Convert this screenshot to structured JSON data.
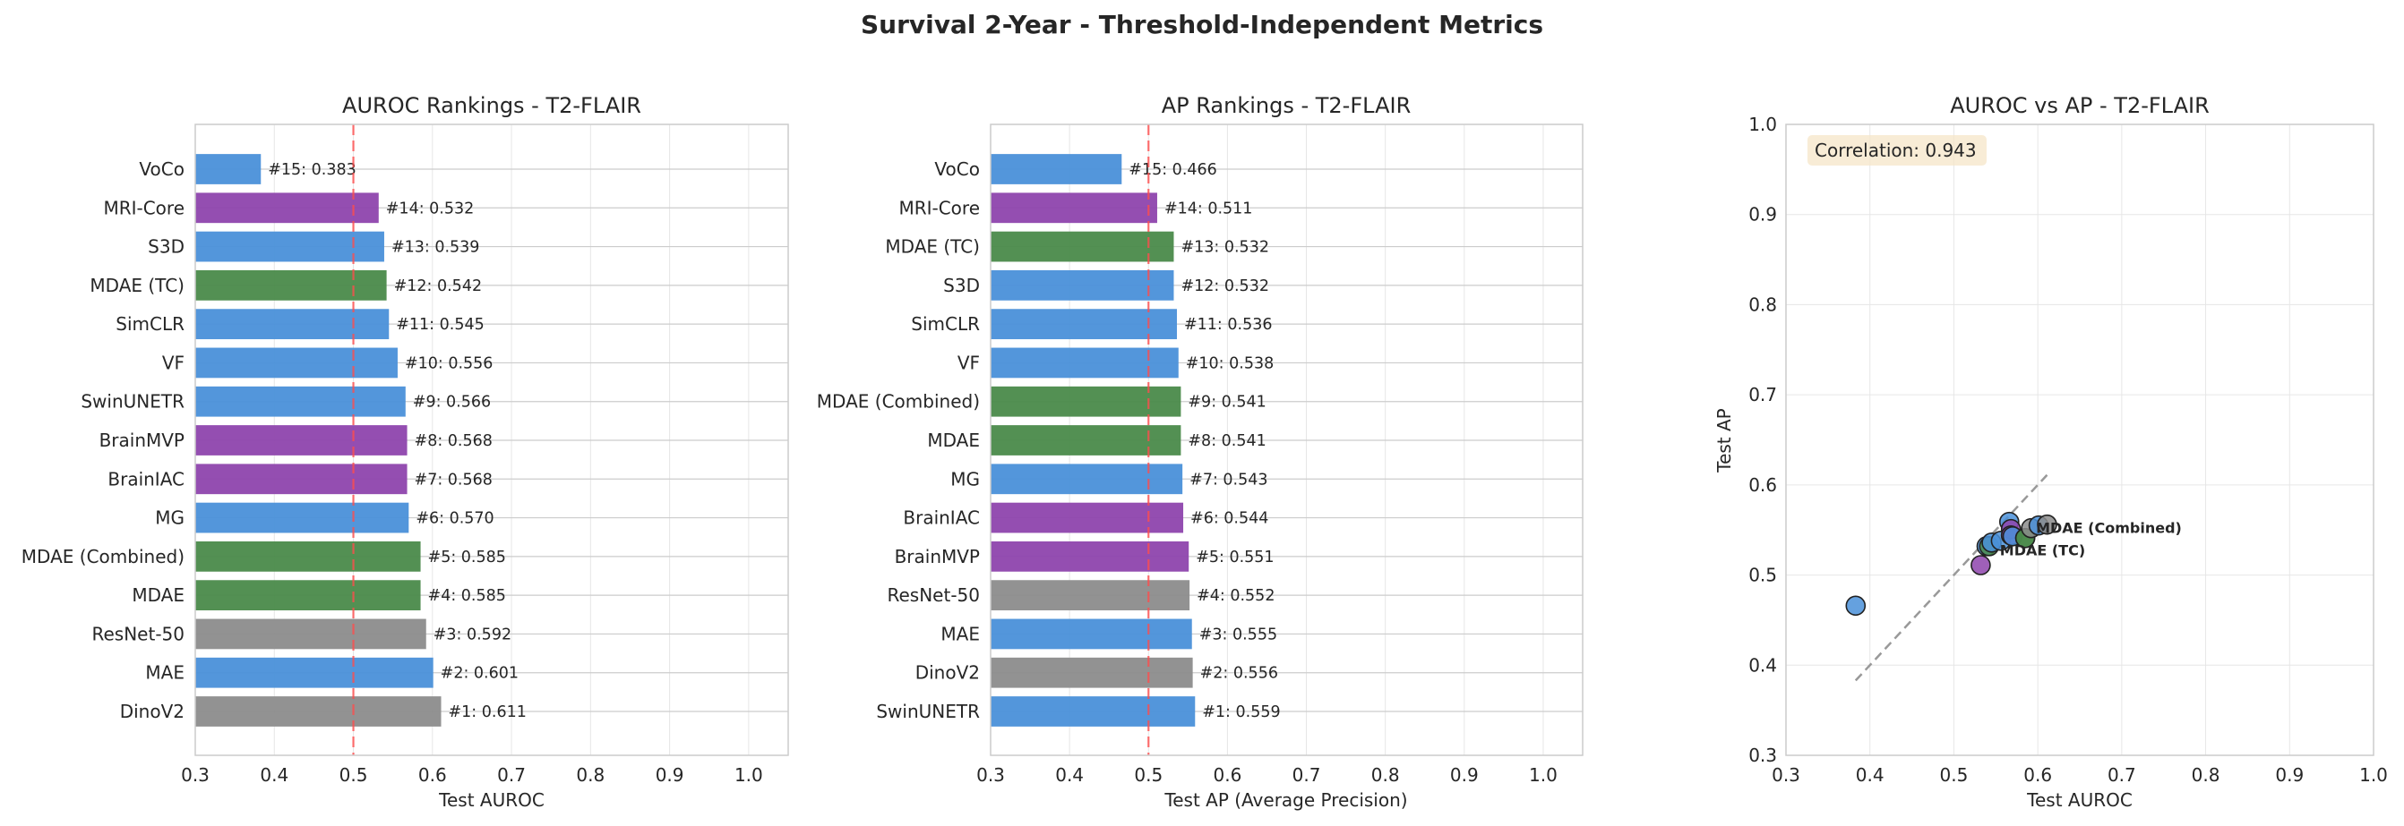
{
  "figure": {
    "suptitle": "Survival 2-Year - Threshold-Independent Metrics"
  },
  "colors": {
    "blue": "#4a90d9",
    "purple": "#8e44ad",
    "green": "#4a8a4a",
    "gray": "#8c8c8c",
    "threshold_line": "#ff4d4d",
    "diagonal": "#999999",
    "grid": "#e6e6e6",
    "spine": "#cccccc",
    "annot_box": "#f5e6c8"
  },
  "chart_data": [
    {
      "type": "bar",
      "orientation": "horizontal",
      "title": "AUROC Rankings - T2-FLAIR",
      "xlabel": "Test AUROC",
      "ylabel": "",
      "xlim": [
        0.3,
        1.05
      ],
      "xticks": [
        "0.3",
        "0.4",
        "0.5",
        "0.6",
        "0.7",
        "0.8",
        "0.9",
        "1.0"
      ],
      "reference_line": 0.5,
      "grid": true,
      "categories": [
        "VoCo",
        "MRI-Core",
        "S3D",
        "MDAE (TC)",
        "SimCLR",
        "VF",
        "SwinUNETR",
        "BrainMVP",
        "BrainIAC",
        "MG",
        "MDAE (Combined)",
        "MDAE",
        "ResNet-50",
        "MAE",
        "DinoV2"
      ],
      "values": [
        0.383,
        0.532,
        0.539,
        0.542,
        0.545,
        0.556,
        0.566,
        0.568,
        0.568,
        0.57,
        0.585,
        0.585,
        0.592,
        0.601,
        0.611
      ],
      "bar_colors": [
        "blue",
        "purple",
        "blue",
        "green",
        "blue",
        "blue",
        "blue",
        "purple",
        "purple",
        "blue",
        "green",
        "green",
        "gray",
        "blue",
        "gray"
      ],
      "data_labels": [
        "#15: 0.383",
        "#14: 0.532",
        "#13: 0.539",
        "#12: 0.542",
        "#11: 0.545",
        "#10: 0.556",
        "#9: 0.566",
        "#8: 0.568",
        "#7: 0.568",
        "#6: 0.570",
        "#5: 0.585",
        "#4: 0.585",
        "#3: 0.592",
        "#2: 0.601",
        "#1: 0.611"
      ]
    },
    {
      "type": "bar",
      "orientation": "horizontal",
      "title": "AP Rankings - T2-FLAIR",
      "xlabel": "Test AP (Average Precision)",
      "ylabel": "",
      "xlim": [
        0.3,
        1.05
      ],
      "xticks": [
        "0.3",
        "0.4",
        "0.5",
        "0.6",
        "0.7",
        "0.8",
        "0.9",
        "1.0"
      ],
      "reference_line": 0.5,
      "grid": true,
      "categories": [
        "VoCo",
        "MRI-Core",
        "MDAE (TC)",
        "S3D",
        "SimCLR",
        "VF",
        "MDAE (Combined)",
        "MDAE",
        "MG",
        "BrainIAC",
        "BrainMVP",
        "ResNet-50",
        "MAE",
        "DinoV2",
        "SwinUNETR"
      ],
      "values": [
        0.466,
        0.511,
        0.532,
        0.532,
        0.536,
        0.538,
        0.541,
        0.541,
        0.543,
        0.544,
        0.551,
        0.552,
        0.555,
        0.556,
        0.559
      ],
      "bar_colors": [
        "blue",
        "purple",
        "green",
        "blue",
        "blue",
        "blue",
        "green",
        "green",
        "blue",
        "purple",
        "purple",
        "gray",
        "blue",
        "gray",
        "blue"
      ],
      "data_labels": [
        "#15: 0.466",
        "#14: 0.511",
        "#13: 0.532",
        "#12: 0.532",
        "#11: 0.536",
        "#10: 0.538",
        "#9: 0.541",
        "#8: 0.541",
        "#7: 0.543",
        "#6: 0.544",
        "#5: 0.551",
        "#4: 0.552",
        "#3: 0.555",
        "#2: 0.556",
        "#1: 0.559"
      ]
    },
    {
      "type": "scatter",
      "title": "AUROC vs AP - T2-FLAIR",
      "xlabel": "Test AUROC",
      "ylabel": "Test AP",
      "xlim": [
        0.3,
        1.0
      ],
      "ylim": [
        0.3,
        1.0
      ],
      "xticks": [
        "0.3",
        "0.4",
        "0.5",
        "0.6",
        "0.7",
        "0.8",
        "0.9",
        "1.0"
      ],
      "yticks": [
        "0.3",
        "0.4",
        "0.5",
        "0.6",
        "0.7",
        "0.8",
        "0.9",
        "1.0"
      ],
      "grid": true,
      "correlation_text": "Correlation: 0.943",
      "diagonal_range": [
        0.383,
        0.611
      ],
      "points": [
        {
          "x": 0.383,
          "y": 0.466,
          "color": "blue"
        },
        {
          "x": 0.532,
          "y": 0.511,
          "color": "purple"
        },
        {
          "x": 0.539,
          "y": 0.532,
          "color": "blue"
        },
        {
          "x": 0.542,
          "y": 0.532,
          "color": "green"
        },
        {
          "x": 0.545,
          "y": 0.536,
          "color": "blue"
        },
        {
          "x": 0.556,
          "y": 0.538,
          "color": "blue"
        },
        {
          "x": 0.566,
          "y": 0.559,
          "color": "blue"
        },
        {
          "x": 0.568,
          "y": 0.551,
          "color": "purple"
        },
        {
          "x": 0.568,
          "y": 0.544,
          "color": "purple"
        },
        {
          "x": 0.57,
          "y": 0.543,
          "color": "blue"
        },
        {
          "x": 0.585,
          "y": 0.541,
          "color": "green"
        },
        {
          "x": 0.585,
          "y": 0.541,
          "color": "green"
        },
        {
          "x": 0.592,
          "y": 0.552,
          "color": "gray"
        },
        {
          "x": 0.601,
          "y": 0.555,
          "color": "blue"
        },
        {
          "x": 0.611,
          "y": 0.556,
          "color": "gray"
        }
      ],
      "annotations": [
        {
          "text": "MDAE (Combined)",
          "x": 0.585,
          "y": 0.541
        },
        {
          "text": "MDAE (TC)",
          "x": 0.542,
          "y": 0.532
        }
      ]
    }
  ]
}
